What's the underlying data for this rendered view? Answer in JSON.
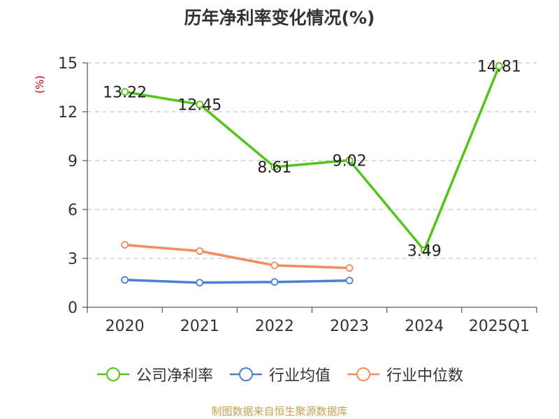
{
  "title": "历年净利率变化情况(%)",
  "unit_label": "(%)",
  "source": "制图数据来自恒生聚源数据库",
  "chart_data": {
    "type": "line",
    "categories": [
      "2020",
      "2021",
      "2022",
      "2023",
      "2024",
      "2025Q1"
    ],
    "ylim": [
      0,
      15
    ],
    "yticks": [
      0,
      3,
      6,
      9,
      12,
      15
    ],
    "grid": true,
    "legend_position": "bottom",
    "series": [
      {
        "name": "公司净利率",
        "color": "#52c41a",
        "show_labels": true,
        "values": [
          13.22,
          12.45,
          8.61,
          9.02,
          3.49,
          14.81
        ]
      },
      {
        "name": "行业均值",
        "color": "#4a7fd6",
        "show_labels": false,
        "values": [
          1.68,
          1.51,
          1.55,
          1.64,
          null,
          null
        ]
      },
      {
        "name": "行业中位数",
        "color": "#f58b5c",
        "show_labels": false,
        "values": [
          3.83,
          3.45,
          2.57,
          2.41,
          null,
          null
        ]
      }
    ]
  }
}
